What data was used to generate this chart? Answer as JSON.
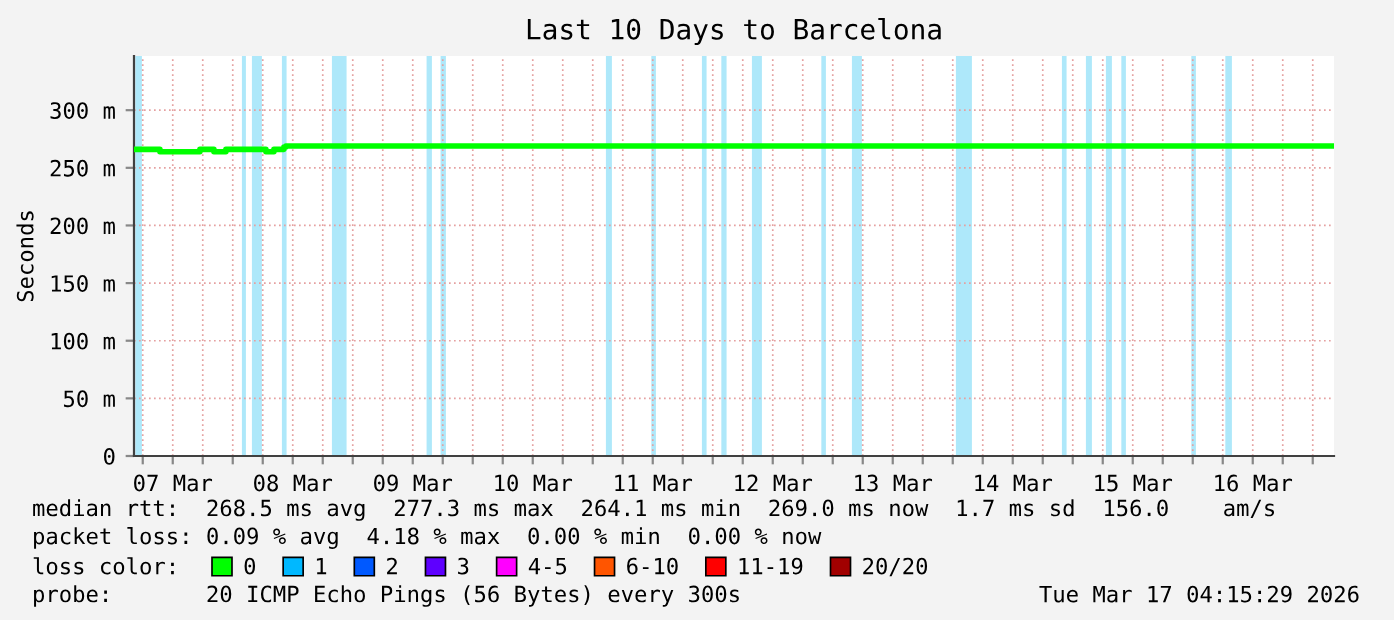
{
  "chart_data": {
    "type": "step",
    "title": "Last 10 Days to Barcelona",
    "ylabel": "Seconds",
    "x": [
      "2026-03-07T04:15",
      "2026-03-07T09:26",
      "2026-03-07T17:26",
      "2026-03-07T20:14",
      "2026-03-07T22:38",
      "2026-03-08T06:38",
      "2026-03-08T08:14",
      "2026-03-08T10:14",
      "2026-03-08T10:38",
      "2026-03-17T04:15"
    ],
    "series": [
      {
        "name": "0",
        "color": "#00ff00",
        "values": [
          266,
          264,
          266,
          264,
          266,
          264,
          266,
          268,
          269,
          269
        ]
      },
      {
        "name": "1",
        "color": "#00b8ff",
        "values": [
          null,
          null,
          null,
          null,
          null,
          null,
          null,
          null,
          null,
          null
        ]
      },
      {
        "name": "2",
        "color": "#0059ff",
        "values": [
          null,
          null,
          null,
          null,
          null,
          null,
          null,
          null,
          null,
          null
        ]
      },
      {
        "name": "3",
        "color": "#5e00ff",
        "values": [
          null,
          null,
          null,
          null,
          null,
          null,
          null,
          null,
          null,
          null
        ]
      },
      {
        "name": "4-5",
        "color": "#ff00ff",
        "values": [
          null,
          null,
          null,
          null,
          null,
          null,
          null,
          null,
          null,
          null
        ]
      },
      {
        "name": "6-10",
        "color": "#ff5500",
        "values": [
          null,
          null,
          null,
          null,
          null,
          null,
          null,
          null,
          null,
          null
        ]
      },
      {
        "name": "11-19",
        "color": "#ff0000",
        "values": [
          null,
          null,
          null,
          null,
          null,
          null,
          null,
          null,
          null,
          null
        ]
      },
      {
        "name": "20/20",
        "color": "#a10000",
        "values": [
          null,
          null,
          null,
          null,
          null,
          null,
          null,
          null,
          null,
          null
        ]
      }
    ],
    "legend_title": "loss color:",
    "legend": "bottom",
    "xlim": [
      "2026-03-07T04:15",
      "2026-03-17T04:15"
    ],
    "xticks": [
      {
        "value": "2026-03-07T06:00",
        "label": null
      },
      {
        "value": "2026-03-07T12:00",
        "label": "07 Mar"
      },
      {
        "value": "2026-03-07T18:00",
        "label": null
      },
      {
        "value": "2026-03-08T00:00",
        "label": null
      },
      {
        "value": "2026-03-08T06:00",
        "label": null
      },
      {
        "value": "2026-03-08T12:00",
        "label": "08 Mar"
      },
      {
        "value": "2026-03-08T18:00",
        "label": null
      },
      {
        "value": "2026-03-09T00:00",
        "label": null
      },
      {
        "value": "2026-03-09T06:00",
        "label": null
      },
      {
        "value": "2026-03-09T12:00",
        "label": "09 Mar"
      },
      {
        "value": "2026-03-09T18:00",
        "label": null
      },
      {
        "value": "2026-03-10T00:00",
        "label": null
      },
      {
        "value": "2026-03-10T06:00",
        "label": null
      },
      {
        "value": "2026-03-10T12:00",
        "label": "10 Mar"
      },
      {
        "value": "2026-03-10T18:00",
        "label": null
      },
      {
        "value": "2026-03-11T00:00",
        "label": null
      },
      {
        "value": "2026-03-11T06:00",
        "label": null
      },
      {
        "value": "2026-03-11T12:00",
        "label": "11 Mar"
      },
      {
        "value": "2026-03-11T18:00",
        "label": null
      },
      {
        "value": "2026-03-12T00:00",
        "label": null
      },
      {
        "value": "2026-03-12T06:00",
        "label": null
      },
      {
        "value": "2026-03-12T12:00",
        "label": "12 Mar"
      },
      {
        "value": "2026-03-12T18:00",
        "label": null
      },
      {
        "value": "2026-03-13T00:00",
        "label": null
      },
      {
        "value": "2026-03-13T06:00",
        "label": null
      },
      {
        "value": "2026-03-13T12:00",
        "label": "13 Mar"
      },
      {
        "value": "2026-03-13T18:00",
        "label": null
      },
      {
        "value": "2026-03-14T00:00",
        "label": null
      },
      {
        "value": "2026-03-14T06:00",
        "label": null
      },
      {
        "value": "2026-03-14T12:00",
        "label": "14 Mar"
      },
      {
        "value": "2026-03-14T18:00",
        "label": null
      },
      {
        "value": "2026-03-15T00:00",
        "label": null
      },
      {
        "value": "2026-03-15T06:00",
        "label": null
      },
      {
        "value": "2026-03-15T12:00",
        "label": "15 Mar"
      },
      {
        "value": "2026-03-15T18:00",
        "label": null
      },
      {
        "value": "2026-03-16T00:00",
        "label": null
      },
      {
        "value": "2026-03-16T06:00",
        "label": null
      },
      {
        "value": "2026-03-16T12:00",
        "label": "16 Mar"
      },
      {
        "value": "2026-03-16T18:00",
        "label": null
      },
      {
        "value": "2026-03-17T00:00",
        "label": null
      }
    ],
    "ylim": [
      0,
      347
    ],
    "yticks": [
      0,
      {
        "value": 50,
        "label": "50 m"
      },
      {
        "value": 100,
        "label": "100 m"
      },
      {
        "value": 150,
        "label": "150 m"
      },
      {
        "value": 200,
        "label": "200 m"
      },
      {
        "value": 250,
        "label": "250 m"
      },
      {
        "value": 300,
        "label": "300 m"
      }
    ],
    "grid": true,
    "bands": [
      {
        "axis": "x",
        "from": "2026-03-07T04:31",
        "to": "2026-03-07T05:50",
        "color": "#aee8fa"
      },
      {
        "axis": "x",
        "from": "2026-03-08T01:50",
        "to": "2026-03-08T02:38",
        "color": "#aee8fa"
      },
      {
        "axis": "x",
        "from": "2026-03-08T03:50",
        "to": "2026-03-08T05:50",
        "color": "#aee8fa"
      },
      {
        "axis": "x",
        "from": "2026-03-08T09:50",
        "to": "2026-03-08T10:46",
        "color": "#aee8fa"
      },
      {
        "axis": "x",
        "from": "2026-03-08T19:50",
        "to": "2026-03-08T22:46",
        "color": "#aee8fa"
      },
      {
        "axis": "x",
        "from": "2026-03-09T14:46",
        "to": "2026-03-09T15:50",
        "color": "#aee8fa"
      },
      {
        "axis": "x",
        "from": "2026-03-09T17:34",
        "to": "2026-03-09T18:38",
        "color": "#aee8fa"
      },
      {
        "axis": "x",
        "from": "2026-03-11T02:38",
        "to": "2026-03-11T03:50",
        "color": "#aee8fa"
      },
      {
        "axis": "x",
        "from": "2026-03-11T11:43",
        "to": "2026-03-11T12:38",
        "color": "#aee8fa"
      },
      {
        "axis": "x",
        "from": "2026-03-11T21:50",
        "to": "2026-03-11T22:46",
        "color": "#aee8fa"
      },
      {
        "axis": "x",
        "from": "2026-03-12T01:43",
        "to": "2026-03-12T02:46",
        "color": "#aee8fa"
      },
      {
        "axis": "x",
        "from": "2026-03-12T07:50",
        "to": "2026-03-12T09:50",
        "color": "#aee8fa"
      },
      {
        "axis": "x",
        "from": "2026-03-12T21:43",
        "to": "2026-03-12T22:38",
        "color": "#aee8fa"
      },
      {
        "axis": "x",
        "from": "2026-03-13T03:50",
        "to": "2026-03-13T05:50",
        "color": "#aee8fa"
      },
      {
        "axis": "x",
        "from": "2026-03-14T00:38",
        "to": "2026-03-14T03:50",
        "color": "#aee8fa"
      },
      {
        "axis": "x",
        "from": "2026-03-14T21:50",
        "to": "2026-03-14T22:46",
        "color": "#aee8fa"
      },
      {
        "axis": "x",
        "from": "2026-03-15T02:38",
        "to": "2026-03-15T03:50",
        "color": "#aee8fa"
      },
      {
        "axis": "x",
        "from": "2026-03-15T06:38",
        "to": "2026-03-15T07:50",
        "color": "#aee8fa"
      },
      {
        "axis": "x",
        "from": "2026-03-15T09:43",
        "to": "2026-03-15T10:38",
        "color": "#aee8fa"
      },
      {
        "axis": "x",
        "from": "2026-03-15T23:43",
        "to": "2026-03-16T00:38",
        "color": "#aee8fa"
      },
      {
        "axis": "x",
        "from": "2026-03-16T06:31",
        "to": "2026-03-16T07:50",
        "color": "#aee8fa"
      }
    ],
    "annotations": [
      "median rtt:  268.5 ms avg  277.3 ms max  264.1 ms min  269.0 ms now  1.7 ms sd  156.0    am/s",
      "packet loss: 0.09 % avg  4.18 % max  0.00 % min  0.00 % now",
      "probe:       20 ICMP Echo Pings (56 Bytes) every 300s",
      "Tue Mar 17 04:15:29 2026"
    ]
  }
}
